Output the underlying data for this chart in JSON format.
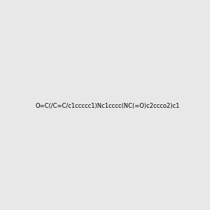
{
  "smiles": "O=C(/C=C/c1ccccc1)Nc1cccc(NC(=O)c2ccco2)c1",
  "img_size": [
    300,
    300
  ],
  "background_color": "#e8e8e8",
  "atom_color_scheme": "default"
}
